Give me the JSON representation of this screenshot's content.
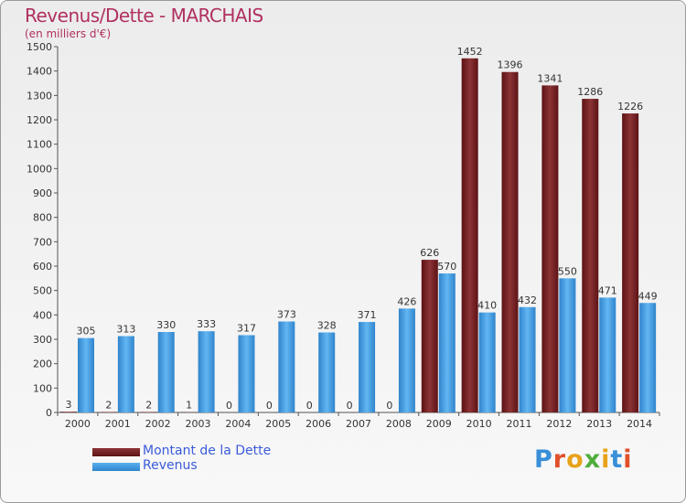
{
  "header": {
    "title": "Revenus/Dette - MARCHAIS",
    "subtitle": "(en milliers d'€)"
  },
  "colors": {
    "debt_bar": "#6b1a1c",
    "debt_bar_light": "#8c3436",
    "revenue_bar": "#3f94d9",
    "revenue_bar_light": "#5ab0ef",
    "title": "#b03060",
    "legend_text": "#3b5bdb"
  },
  "chart_data": {
    "type": "bar",
    "title": "Revenus/Dette - MARCHAIS",
    "subtitle": "(en milliers d'€)",
    "categories": [
      "2000",
      "2001",
      "2002",
      "2003",
      "2004",
      "2005",
      "2006",
      "2007",
      "2008",
      "2009",
      "2010",
      "2011",
      "2012",
      "2013",
      "2014"
    ],
    "series": [
      {
        "name": "Montant de la Dette",
        "values": [
          3,
          2,
          2,
          1,
          0,
          0,
          0,
          0,
          0,
          626,
          1452,
          1396,
          1341,
          1286,
          1226
        ]
      },
      {
        "name": "Revenus",
        "values": [
          305,
          313,
          330,
          333,
          317,
          373,
          328,
          371,
          426,
          570,
          410,
          432,
          550,
          471,
          449
        ]
      }
    ],
    "ylim": [
      0,
      1500
    ],
    "yticks": [
      0,
      100,
      200,
      300,
      400,
      500,
      600,
      700,
      800,
      900,
      1000,
      1100,
      1200,
      1300,
      1400,
      1500
    ],
    "grid": false,
    "legend": "bottom-left"
  },
  "legend": {
    "items": [
      {
        "label": "Montant de la Dette",
        "color": "#6b1a1c"
      },
      {
        "label": "Revenus",
        "color": "#3f94d9"
      }
    ]
  },
  "logo": {
    "text": "Proxiti",
    "letter_colors": [
      "#3a8fd8",
      "#e0502a",
      "#e8a21a",
      "#4fae3a",
      "#e8a21a",
      "#3a8fd8",
      "#e0502a"
    ]
  }
}
